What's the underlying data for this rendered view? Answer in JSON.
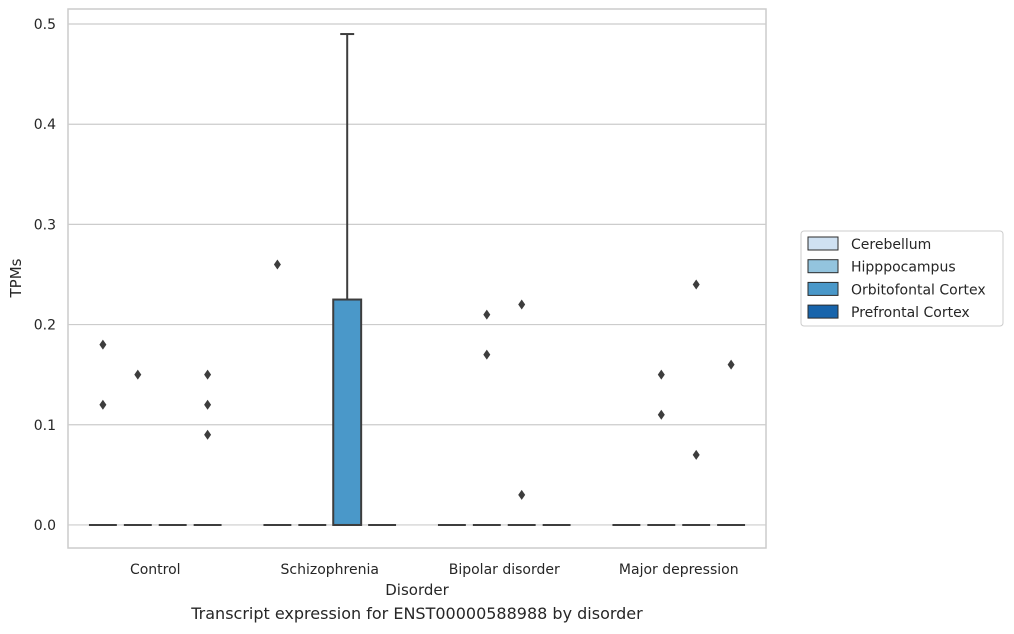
{
  "caption": "Transcript expression for ENST00000588988 by disorder",
  "chart_data": {
    "type": "box",
    "title": "",
    "xlabel": "Disorder",
    "ylabel": "TPMs",
    "ylim": [
      -0.023,
      0.515
    ],
    "yticks": [
      "0.0",
      "0.1",
      "0.2",
      "0.3",
      "0.4",
      "0.5"
    ],
    "grid": true,
    "legend_position": "right",
    "categories": [
      "Control",
      "Schizophrenia",
      "Bipolar disorder",
      "Major depression"
    ],
    "series": [
      {
        "name": "Cerebellum",
        "color": "#cfe1f2"
      },
      {
        "name": "Hipppocampus",
        "color": "#93c4de"
      },
      {
        "name": "Orbitofontal Cortex",
        "color": "#4a98c9"
      },
      {
        "name": "Prefrontal Cortex",
        "color": "#1764ab"
      }
    ],
    "boxes": [
      {
        "category": "Control",
        "series": "Cerebellum",
        "q1": 0,
        "median": 0,
        "q3": 0,
        "whisker_low": 0,
        "whisker_high": 0,
        "outliers": [
          0.12,
          0.18
        ]
      },
      {
        "category": "Control",
        "series": "Hipppocampus",
        "q1": 0,
        "median": 0,
        "q3": 0,
        "whisker_low": 0,
        "whisker_high": 0,
        "outliers": [
          0.15
        ]
      },
      {
        "category": "Control",
        "series": "Orbitofontal Cortex",
        "q1": 0,
        "median": 0,
        "q3": 0,
        "whisker_low": 0,
        "whisker_high": 0,
        "outliers": []
      },
      {
        "category": "Control",
        "series": "Prefrontal Cortex",
        "q1": 0,
        "median": 0,
        "q3": 0,
        "whisker_low": 0,
        "whisker_high": 0,
        "outliers": [
          0.09,
          0.12,
          0.15
        ]
      },
      {
        "category": "Schizophrenia",
        "series": "Cerebellum",
        "q1": 0,
        "median": 0,
        "q3": 0,
        "whisker_low": 0,
        "whisker_high": 0,
        "outliers": [
          0.26
        ]
      },
      {
        "category": "Schizophrenia",
        "series": "Hipppocampus",
        "q1": 0,
        "median": 0,
        "q3": 0,
        "whisker_low": 0,
        "whisker_high": 0,
        "outliers": []
      },
      {
        "category": "Schizophrenia",
        "series": "Orbitofontal Cortex",
        "q1": 0,
        "median": 0,
        "q3": 0.225,
        "whisker_low": 0,
        "whisker_high": 0.49,
        "outliers": []
      },
      {
        "category": "Schizophrenia",
        "series": "Prefrontal Cortex",
        "q1": 0,
        "median": 0,
        "q3": 0,
        "whisker_low": 0,
        "whisker_high": 0,
        "outliers": []
      },
      {
        "category": "Bipolar disorder",
        "series": "Cerebellum",
        "q1": 0,
        "median": 0,
        "q3": 0,
        "whisker_low": 0,
        "whisker_high": 0,
        "outliers": []
      },
      {
        "category": "Bipolar disorder",
        "series": "Hipppocampus",
        "q1": 0,
        "median": 0,
        "q3": 0,
        "whisker_low": 0,
        "whisker_high": 0,
        "outliers": [
          0.17,
          0.21
        ]
      },
      {
        "category": "Bipolar disorder",
        "series": "Orbitofontal Cortex",
        "q1": 0,
        "median": 0,
        "q3": 0,
        "whisker_low": 0,
        "whisker_high": 0,
        "outliers": [
          0.03,
          0.22
        ]
      },
      {
        "category": "Bipolar disorder",
        "series": "Prefrontal Cortex",
        "q1": 0,
        "median": 0,
        "q3": 0,
        "whisker_low": 0,
        "whisker_high": 0,
        "outliers": []
      },
      {
        "category": "Major depression",
        "series": "Cerebellum",
        "q1": 0,
        "median": 0,
        "q3": 0,
        "whisker_low": 0,
        "whisker_high": 0,
        "outliers": []
      },
      {
        "category": "Major depression",
        "series": "Hipppocampus",
        "q1": 0,
        "median": 0,
        "q3": 0,
        "whisker_low": 0,
        "whisker_high": 0,
        "outliers": [
          0.11,
          0.15
        ]
      },
      {
        "category": "Major depression",
        "series": "Orbitofontal Cortex",
        "q1": 0,
        "median": 0,
        "q3": 0,
        "whisker_low": 0,
        "whisker_high": 0,
        "outliers": [
          0.07,
          0.24
        ]
      },
      {
        "category": "Major depression",
        "series": "Prefrontal Cortex",
        "q1": 0,
        "median": 0,
        "q3": 0,
        "whisker_low": 0,
        "whisker_high": 0,
        "outliers": [
          0.16
        ]
      }
    ]
  }
}
